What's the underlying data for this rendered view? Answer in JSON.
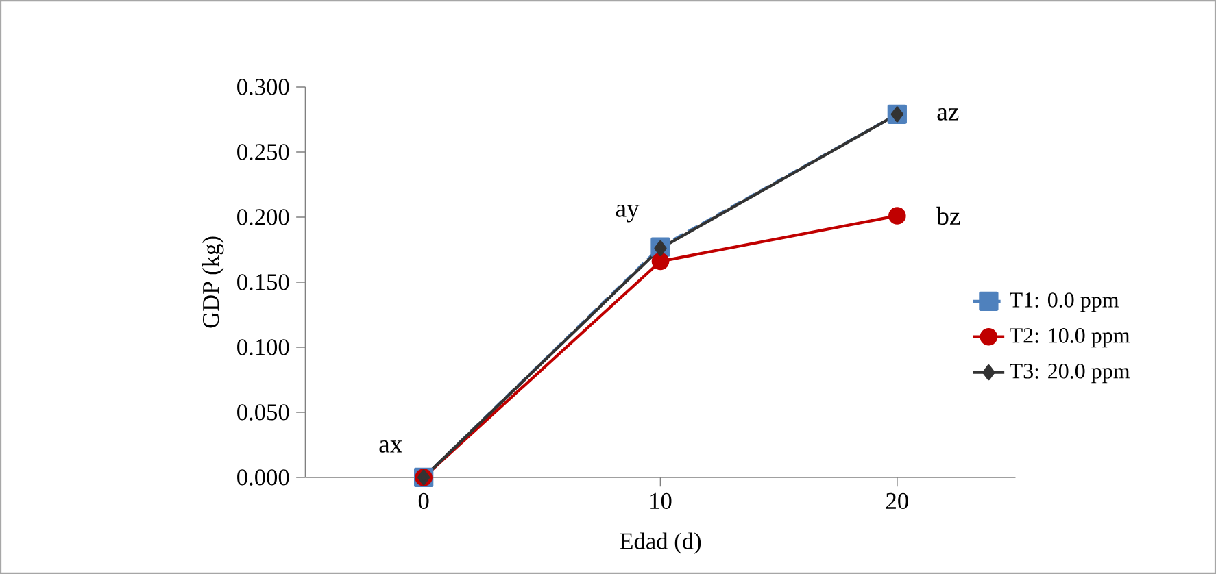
{
  "chart_data": {
    "type": "line",
    "xlabel": "Edad (d)",
    "ylabel": "GDP (kg)",
    "categories": [
      "0",
      "10",
      "20"
    ],
    "series": [
      {
        "name": "T1: 0.0 ppm",
        "color": "#4f81bd",
        "values": [
          0.0,
          0.177,
          0.279
        ],
        "marker": "square",
        "line_style": "dashed"
      },
      {
        "name": "T2: 10.0 ppm",
        "color": "#c00000",
        "values": [
          0.0,
          0.166,
          0.201
        ],
        "marker": "circle",
        "line_style": "solid"
      },
      {
        "name": "T3: 20.0 ppm",
        "color": "#333333",
        "values": [
          0.0,
          0.176,
          0.279
        ],
        "marker": "diamond",
        "line_style": "solid"
      }
    ],
    "ylim": [
      0,
      0.3
    ],
    "yticks": [
      {
        "value": 0,
        "label": "0.000"
      },
      {
        "value": 0.05,
        "label": "0.050"
      },
      {
        "value": 0.1,
        "label": "0.100"
      },
      {
        "value": 0.15,
        "label": "0.150"
      },
      {
        "value": 0.2,
        "label": "0.200"
      },
      {
        "value": 0.25,
        "label": "0.250"
      },
      {
        "value": 0.3,
        "label": "0.300"
      }
    ],
    "grid": false,
    "legend": "right",
    "annotations": [
      {
        "text": "ax",
        "x": "0",
        "y": 0.0
      },
      {
        "text": "ay",
        "x": "10",
        "y": 0.177
      },
      {
        "text": "az",
        "x": "20",
        "y": 0.279
      },
      {
        "text": "bz",
        "x": "20",
        "y": 0.201
      }
    ]
  }
}
